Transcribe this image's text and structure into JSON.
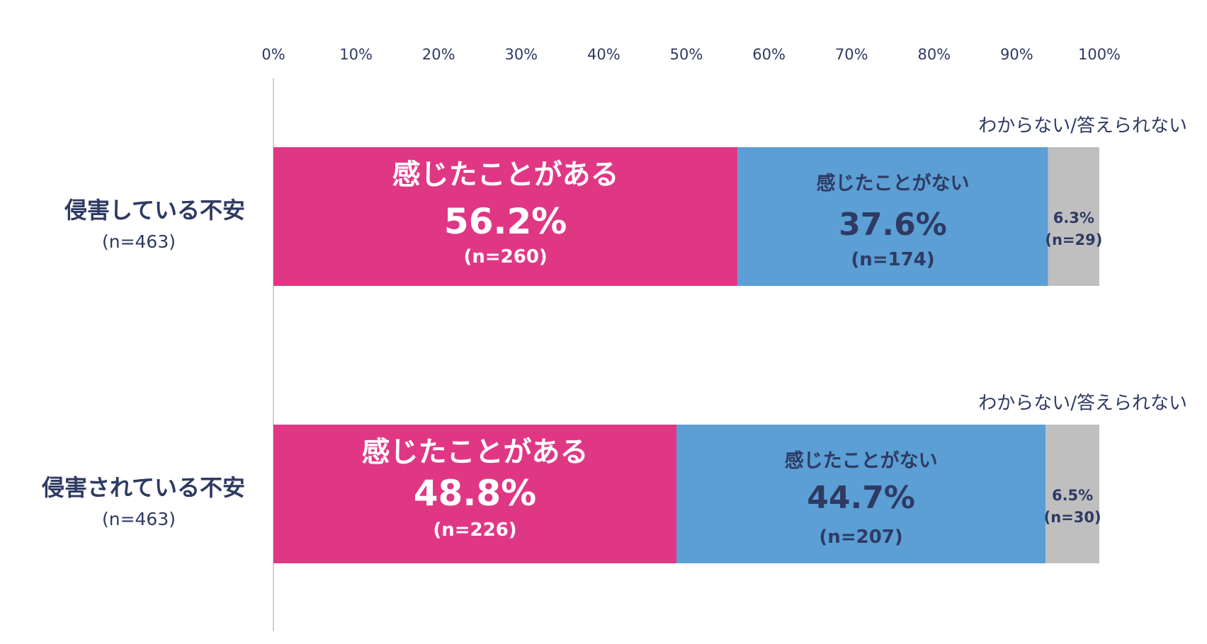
{
  "chart_data": {
    "type": "bar",
    "orientation": "horizontal",
    "stacked": true,
    "xlim": [
      0,
      100
    ],
    "x_ticks": [
      "0%",
      "10%",
      "20%",
      "30%",
      "40%",
      "50%",
      "60%",
      "70%",
      "80%",
      "90%",
      "100%"
    ],
    "grid": false,
    "colors": {
      "series0": "#e03785",
      "series1": "#5b9fd4",
      "series2": "#bfbfbf",
      "text_dark": "#2f3a63",
      "text_light": "#ffffff"
    },
    "categories": [
      {
        "label": "侵害している不安",
        "n_label": "(n=463)"
      },
      {
        "label": "侵害されている不安",
        "n_label": "(n=463)"
      }
    ],
    "series": [
      {
        "name": "感じたことがある",
        "values": [
          56.2,
          48.8
        ],
        "value_labels": [
          "56.2%",
          "48.8%"
        ],
        "n_labels": [
          "(n=260)",
          "(n=226)"
        ]
      },
      {
        "name": "感じたことがない",
        "values": [
          37.6,
          44.7
        ],
        "value_labels": [
          "37.6%",
          "44.7%"
        ],
        "n_labels": [
          "(n=174)",
          "(n=207)"
        ]
      },
      {
        "name": "わからない/答えられない",
        "values": [
          6.3,
          6.5
        ],
        "value_labels": [
          "6.3%",
          "6.5%"
        ],
        "n_labels": [
          "(n=29)",
          "(n=30)"
        ]
      }
    ]
  }
}
